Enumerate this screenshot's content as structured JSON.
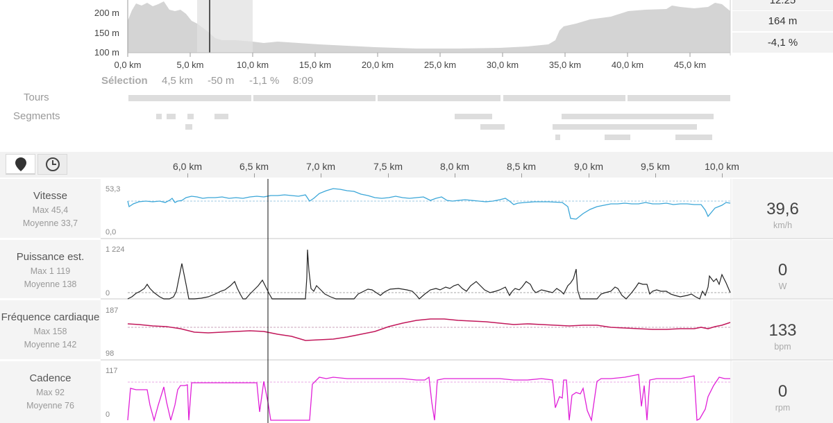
{
  "elevation": {
    "y_ticks": [
      "200 m",
      "150 m",
      "100 m"
    ],
    "x_ticks": [
      "0,0 km",
      "5,0 km",
      "10,0 km",
      "15,0 km",
      "20,0 km",
      "25,0 km",
      "30,0 km",
      "35,0 km",
      "40,0 km",
      "45,0 km"
    ],
    "stats": [
      "12.25",
      "164 m",
      "-4,1 %"
    ],
    "selection": {
      "title": "Sélection",
      "distance": "4,5 km",
      "elevation": "-50 m",
      "grade": "-1,1 %",
      "time": "8:09"
    },
    "rows": {
      "laps_label": "Tours",
      "segments_label": "Segments"
    }
  },
  "toolbar": {
    "distance_icon": "map-pin-icon",
    "time_icon": "clock-icon"
  },
  "detail_x_ticks": [
    "6,0 km",
    "6,5 km",
    "7,0 km",
    "7,5 km",
    "8,0 km",
    "8,5 km",
    "9,0 km",
    "9,5 km",
    "10,0 km"
  ],
  "panels": [
    {
      "title": "Vitesse",
      "max": "Max 45,4",
      "avg": "Moyenne 33,7",
      "ytop": "53,3",
      "ybot": "0,0",
      "value": "39,6",
      "unit": "km/h",
      "color": "#3aa6d8"
    },
    {
      "title": "Puissance est.",
      "max": "Max 1 119",
      "avg": "Moyenne 138",
      "ytop": "1 224",
      "ybot": "0",
      "value": "0",
      "unit": "W",
      "color": "#222222"
    },
    {
      "title": "Fréquence cardiaque",
      "max": "Max 158",
      "avg": "Moyenne 142",
      "ytop": "187",
      "ybot": "98",
      "value": "133",
      "unit": "bpm",
      "color": "#c2185b"
    },
    {
      "title": "Cadence",
      "max": "Max 92",
      "avg": "Moyenne 76",
      "ytop": "117",
      "ybot": "0",
      "value": "0",
      "unit": "rpm",
      "color": "#e01fd8"
    }
  ]
}
